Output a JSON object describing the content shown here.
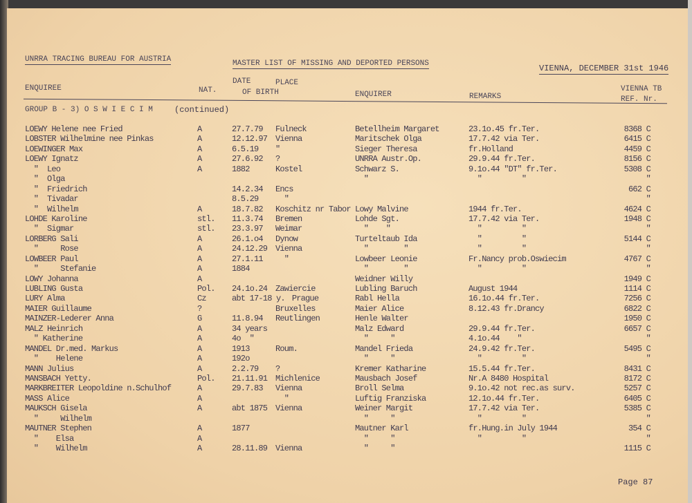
{
  "header": {
    "org": "UNRRA TRACING BUREAU FOR AUSTRIA",
    "title": "MASTER LIST OF MISSING AND DEPORTED PERSONS",
    "place_date": "VIENNA, DECEMBER 31st 1946"
  },
  "columns": {
    "enquiree": "ENQUIREE",
    "nat": "NAT.",
    "date": "DATE",
    "place": "PLACE",
    "of_birth": "OF BIRTH",
    "enquirer": "ENQUIRER",
    "remarks": "REMARKS",
    "ref1": "VIENNA TB",
    "ref2": "REF. Nr."
  },
  "group": {
    "label": "GROUP B - 3) O S W I E C I M",
    "note": "(continued)"
  },
  "rows": [
    {
      "name": "LOEWY Helene nee Fried",
      "nat": "A",
      "date": "27.7.79",
      "place": "Fulneck",
      "enquirer": "Betellheim Margaret",
      "remarks": "23.1o.45 fr.Ter.",
      "ref": "8368 C"
    },
    {
      "name": "LOBSTER Wilhelmine nee Pinkas",
      "nat": "A",
      "date": "12.12.97",
      "place": "Vienna",
      "enquirer": "Maritschek Olga",
      "remarks": "17.7.42 via Ter.",
      "ref": "6415 C"
    },
    {
      "name": "LOEWINGER Max",
      "nat": "A",
      "date": "6.5.19",
      "place": "\"",
      "enquirer": "Sieger Theresa",
      "remarks": "fr.Holland",
      "ref": "4459 C"
    },
    {
      "name": "LOEWY Ignatz",
      "nat": "A",
      "date": "27.6.92",
      "place": "?",
      "enquirer": "UNRRA Austr.Op.",
      "remarks": "29.9.44 fr.Ter.",
      "ref": "8156 C"
    },
    {
      "name": "  \"  Leo",
      "nat": "A",
      "date": "1882",
      "place": "Kostel",
      "enquirer": "Schwarz S.",
      "remarks": "9.1o.44 \"DT\" fr.Ter.",
      "ref": "5308 C"
    },
    {
      "name": "  \"  Olga",
      "nat": "",
      "date": "",
      "place": "",
      "enquirer": "  \"",
      "remarks": "  \"         \"",
      "ref": "\""
    },
    {
      "name": "  \"  Friedrich",
      "nat": "",
      "date": "14.2.34",
      "place": "Encs",
      "enquirer": "",
      "remarks": "",
      "ref": "662 C"
    },
    {
      "name": "  \"  Tivadar",
      "nat": "",
      "date": "8.5.29",
      "place": "  \"",
      "enquirer": "",
      "remarks": "",
      "ref": "\""
    },
    {
      "name": "  \"  Wilhelm",
      "nat": "A",
      "date": "18.7.82",
      "place": "Koschitz nr Tabor",
      "enquirer": "Lowy Malvine",
      "remarks": "1944 fr.Ter.",
      "ref": "4624 C"
    },
    {
      "name": "LOHDE Karoline",
      "nat": "stl.",
      "date": "11.3.74",
      "place": "Bremen",
      "enquirer": "Lohde Sgt.",
      "remarks": "17.7.42 via Ter.",
      "ref": "1948 C"
    },
    {
      "name": "  \"  Sigmar",
      "nat": "stl.",
      "date": "23.3.97",
      "place": "Weimar",
      "enquirer": "  \"    \"",
      "remarks": "  \"         \"",
      "ref": "\""
    },
    {
      "name": "LORBERG Sali",
      "nat": "A",
      "date": "26.1.o4",
      "place": "Dynow",
      "enquirer": "Turteltaub Ida",
      "remarks": "  \"         \"",
      "ref": "5144 C"
    },
    {
      "name": "  \"     Rose",
      "nat": "A",
      "date": "24.12.29",
      "place": "Vienna",
      "enquirer": "  \"        \"",
      "remarks": "  \"         \"",
      "ref": "\""
    },
    {
      "name": "LOWBEER Paul",
      "nat": "A",
      "date": "27.1.11",
      "place": "  \"",
      "enquirer": "Lowbeer Leonie",
      "remarks": "Fr.Nancy prob.Oswiecim",
      "ref": "4767 C"
    },
    {
      "name": "  \"     Stefanie",
      "nat": "A",
      "date": "1884",
      "place": "",
      "enquirer": "  \"        \"",
      "remarks": "  \"         \"",
      "ref": "\""
    },
    {
      "name": "LOWY Johanna",
      "nat": "A",
      "date": "",
      "place": "",
      "enquirer": "Weidner Willy",
      "remarks": "",
      "ref": "1949 C"
    },
    {
      "name": "LUBLING Gusta",
      "nat": "Pol.",
      "date": "24.1o.24",
      "place": "Zawiercie",
      "enquirer": "Lubling Baruch",
      "remarks": "August 1944",
      "ref": "1114 C"
    },
    {
      "name": "LURY Alma",
      "nat": "Cz",
      "date": "abt 17-18 y.",
      "place": "Prague",
      "enquirer": "Rabl Hella",
      "remarks": "16.1o.44 fr.Ter.",
      "ref": "7256 C"
    },
    {
      "name": "MAIER Guillaume",
      "nat": "?",
      "date": "",
      "place": "Bruxelles",
      "enquirer": "Maier Alice",
      "remarks": "8.12.43 fr.Drancy",
      "ref": "6822 C"
    },
    {
      "name": "MAINZER-Lederer Anna",
      "nat": "G",
      "date": "11.8.94",
      "place": "Reutlingen",
      "enquirer": "Henle Walter",
      "remarks": "",
      "ref": "1950 C"
    },
    {
      "name": "MALZ Heinrich",
      "nat": "A",
      "date": "34 years",
      "place": "",
      "enquirer": "Malz Edward",
      "remarks": "29.9.44 fr.Ter.",
      "ref": "6657 C"
    },
    {
      "name": "  \" Katherine",
      "nat": "A",
      "date": "4o  \"",
      "place": "",
      "enquirer": "  \"     \"",
      "remarks": "4.1o.44    \"",
      "ref": "\""
    },
    {
      "name": "MANDEL Dr.med. Markus",
      "nat": "A",
      "date": "1913",
      "place": "Roum.",
      "enquirer": "Mandel Frieda",
      "remarks": "24.9.42 fr.Ter.",
      "ref": "5495 C"
    },
    {
      "name": "  \"    Helene",
      "nat": "A",
      "date": "192o",
      "place": "",
      "enquirer": "  \"     \"",
      "remarks": "  \"         \"",
      "ref": "\""
    },
    {
      "name": "MANN Julius",
      "nat": "A",
      "date": "2.2.79",
      "place": "?",
      "enquirer": "Kremer Katharine",
      "remarks": "15.5.44 fr.Ter.",
      "ref": "8431 C"
    },
    {
      "name": "MANSBACH Yetty.",
      "nat": "Pol.",
      "date": "21.11.91",
      "place": "Michlenice",
      "enquirer": "Mausbach Josef",
      "remarks": "Nr.A 8480 Hospital",
      "ref": "8172 C"
    },
    {
      "name": "MARKBREITER Leopoldine n.Schulhof",
      "nat": "A",
      "date": "29.7.83",
      "place": "Vienna",
      "enquirer": "Broll Selma",
      "remarks": "9.1o.42 not rec.as surv.",
      "ref": "5257 C"
    },
    {
      "name": "MASS Alice",
      "nat": "A",
      "date": "",
      "place": "  \"",
      "enquirer": "Luftig Franziska",
      "remarks": "12.1o.44 fr.Ter.",
      "ref": "6405 C"
    },
    {
      "name": "MAUKSCH Gisela",
      "nat": "A",
      "date": "abt 1875",
      "place": "Vienna",
      "enquirer": "Weiner Margit",
      "remarks": "17.7.42 via Ter.",
      "ref": "5385 C"
    },
    {
      "name": "  \"     Wilhelm",
      "nat": "",
      "date": "",
      "place": "",
      "enquirer": "  \"     \"",
      "remarks": "  \"         \"",
      "ref": "\""
    },
    {
      "name": "MAUTNER Stephen",
      "nat": "A",
      "date": "1877",
      "place": "",
      "enquirer": "Mautner Karl",
      "remarks": "fr.Hung.in July 1944",
      "ref": "354 C"
    },
    {
      "name": "  \"    Elsa",
      "nat": "A",
      "date": "",
      "place": "",
      "enquirer": "  \"     \"",
      "remarks": "  \"         \"",
      "ref": "\""
    },
    {
      "name": "  \"    Wilhelm",
      "nat": "A",
      "date": "28.11.89",
      "place": "Vienna",
      "enquirer": "  \"     \"",
      "remarks": "",
      "ref": "1115 C"
    }
  ],
  "footer": {
    "page": "Page 87"
  }
}
